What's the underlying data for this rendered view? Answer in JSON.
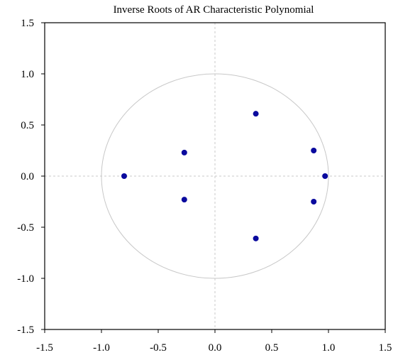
{
  "chart_data": {
    "type": "scatter",
    "title": "Inverse Roots of AR Characteristic Polynomial",
    "xlabel": "",
    "ylabel": "",
    "xlim": [
      -1.5,
      1.5
    ],
    "ylim": [
      -1.5,
      1.5
    ],
    "x_ticks": [
      "-1.5",
      "-1.0",
      "-0.5",
      "0.0",
      "0.5",
      "1.0",
      "1.5"
    ],
    "y_ticks": [
      "1.5",
      "1.0",
      "0.5",
      "0.0",
      "-0.5",
      "-1.0",
      "-1.5"
    ],
    "x_tick_values": [
      -1.5,
      -1.0,
      -0.5,
      0.0,
      0.5,
      1.0,
      1.5
    ],
    "y_tick_values": [
      1.5,
      1.0,
      0.5,
      0.0,
      -0.5,
      -1.0,
      -1.5
    ],
    "unit_circle": true,
    "reference_lines": [
      "x=0",
      "y=0"
    ],
    "points": [
      {
        "x": 0.36,
        "y": 0.61
      },
      {
        "x": 0.36,
        "y": -0.61
      },
      {
        "x": -0.27,
        "y": 0.23
      },
      {
        "x": -0.27,
        "y": -0.23
      },
      {
        "x": -0.8,
        "y": 0.0
      },
      {
        "x": 0.87,
        "y": 0.25
      },
      {
        "x": 0.87,
        "y": -0.25
      },
      {
        "x": 0.97,
        "y": 0.0
      }
    ],
    "point_color": "#0a0a9e",
    "circle_color": "#c8c8c8",
    "refline_color": "#c8c8c8",
    "grid": false,
    "legend": "none"
  }
}
